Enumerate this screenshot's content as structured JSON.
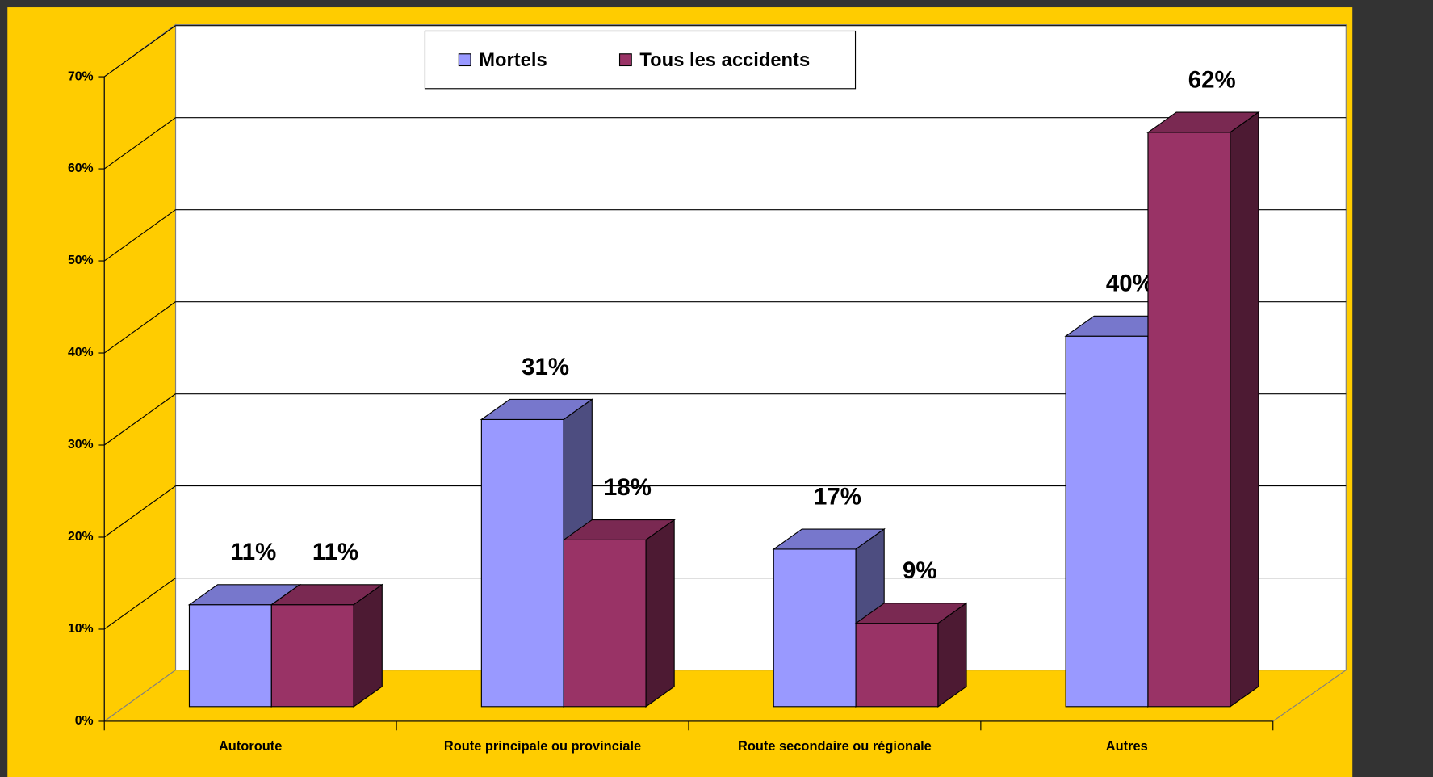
{
  "chart_data": {
    "type": "bar3d",
    "categories": [
      "Autoroute",
      "Route principale ou provinciale",
      "Route secondaire ou régionale",
      "Autres"
    ],
    "series": [
      {
        "name": "Mortels",
        "color": "#9999FF",
        "values": [
          11,
          31,
          17,
          40
        ],
        "value_labels": [
          "11%",
          "31%",
          "17%",
          "40%"
        ]
      },
      {
        "name": "Tous les accidents",
        "color": "#993366",
        "values": [
          11,
          18,
          9,
          62
        ],
        "value_labels": [
          "11%",
          "18%",
          "9%",
          "62%"
        ]
      }
    ],
    "ylim": [
      0,
      70
    ],
    "yticks": [
      {
        "value": 0,
        "label": "0%"
      },
      {
        "value": 10,
        "label": "10%"
      },
      {
        "value": 20,
        "label": "20%"
      },
      {
        "value": 30,
        "label": "30%"
      },
      {
        "value": 40,
        "label": "40%"
      },
      {
        "value": 50,
        "label": "50%"
      },
      {
        "value": 60,
        "label": "60%"
      },
      {
        "value": 70,
        "label": "70%"
      }
    ],
    "grid": true,
    "legend": "top"
  }
}
